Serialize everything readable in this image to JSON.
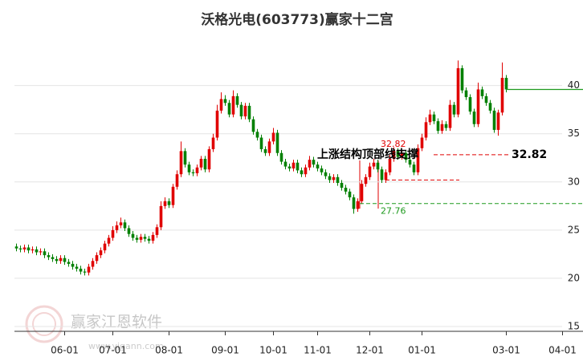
{
  "chart_data": {
    "type": "candlestick",
    "title": "沃格光电(603773)赢家十二宫",
    "watermark": "赢家江恩软件",
    "watermark_url": "www.yjgann.com",
    "annotation": "上涨结构顶部线支撑",
    "up_color": "#e00000",
    "down_color": "#008000",
    "ylim": [
      14.5,
      44.3
    ],
    "yticks": [
      15,
      20,
      25,
      30,
      35,
      40
    ],
    "grid": true,
    "levels": [
      {
        "value": 32.82,
        "color": "#e00000",
        "style": "dashed"
      },
      {
        "value": 27.76,
        "color": "#1e9a1e",
        "style": "dashed"
      },
      {
        "value": 30.2,
        "color": "#e00000",
        "style": "dashed"
      },
      {
        "value": 39.6,
        "color": "#1e9a1e",
        "style": "solid"
      }
    ],
    "categories": [
      null,
      null,
      null,
      null,
      null,
      null,
      null,
      null,
      null,
      null,
      null,
      null,
      "06-01",
      null,
      null,
      null,
      null,
      null,
      null,
      null,
      null,
      null,
      null,
      null,
      "07-01",
      null,
      null,
      null,
      null,
      null,
      null,
      null,
      null,
      null,
      null,
      null,
      null,
      null,
      "08-01",
      null,
      null,
      null,
      null,
      null,
      null,
      null,
      null,
      null,
      null,
      null,
      null,
      null,
      "09-01",
      null,
      null,
      null,
      null,
      null,
      null,
      null,
      null,
      null,
      null,
      null,
      "10-01",
      null,
      null,
      null,
      null,
      null,
      null,
      null,
      null,
      null,
      null,
      "11-01",
      null,
      null,
      null,
      null,
      null,
      null,
      null,
      null,
      null,
      null,
      null,
      null,
      "12-01",
      null,
      null,
      null,
      null,
      null,
      null,
      null,
      null,
      null,
      null,
      null,
      null,
      "01-01",
      null,
      null,
      null,
      null,
      null,
      null,
      null,
      null,
      null,
      null,
      null,
      null,
      null,
      null,
      null,
      null,
      null,
      null,
      null,
      null,
      "03-01",
      null,
      null,
      null,
      null,
      null,
      null,
      null,
      null,
      null,
      null,
      null,
      null,
      null,
      "04-01",
      null,
      null,
      null
    ],
    "open": [
      23.3,
      23.1,
      23.0,
      23.2,
      22.9,
      23.0,
      22.7,
      22.8,
      22.4,
      22.2,
      22.0,
      21.8,
      22.1,
      21.7,
      21.5,
      21.2,
      21.0,
      20.7,
      20.6,
      21.2,
      21.8,
      22.4,
      22.9,
      23.6,
      24.2,
      25.0,
      25.5,
      25.8,
      25.2,
      24.6,
      24.2,
      24.0,
      24.3,
      24.1,
      23.9,
      24.5,
      25.3,
      27.5,
      28.0,
      27.6,
      29.5,
      30.8,
      33.2,
      31.8,
      31.0,
      30.9,
      31.5,
      32.4,
      31.3,
      33.4,
      34.6,
      37.4,
      38.6,
      38.2,
      37.0,
      38.9,
      38.0,
      36.8,
      37.9,
      36.5,
      35.2,
      34.6,
      33.4,
      33.0,
      34.2,
      35.1,
      33.0,
      32.1,
      31.6,
      31.4,
      32.0,
      31.2,
      30.8,
      31.5,
      32.3,
      31.8,
      31.4,
      31.0,
      30.6,
      30.2,
      30.5,
      29.9,
      29.4,
      29.0,
      28.4,
      27.2,
      28.0,
      29.8,
      30.5,
      31.6,
      32.0,
      31.3,
      30.2,
      31.0,
      32.4,
      33.2,
      32.6,
      33.0,
      32.3,
      31.8,
      31.0,
      33.5,
      34.6,
      36.2,
      37.0,
      36.3,
      35.3,
      36.0,
      35.6,
      38.0,
      37.0,
      41.8,
      39.5,
      38.8,
      37.3,
      36.0,
      39.6,
      38.9,
      38.2,
      37.4,
      35.4,
      37.2,
      40.8,
      null,
      null,
      null,
      null,
      null,
      null,
      null,
      null,
      null,
      null,
      null,
      null,
      null,
      null,
      null,
      null,
      null
    ],
    "high": [
      23.6,
      23.4,
      23.5,
      23.5,
      23.3,
      23.3,
      23.1,
      23.1,
      22.7,
      22.5,
      22.3,
      22.4,
      22.4,
      22.0,
      21.8,
      21.5,
      21.3,
      21.0,
      21.5,
      22.1,
      22.7,
      23.2,
      23.9,
      24.5,
      25.4,
      25.9,
      26.3,
      26.1,
      25.5,
      24.9,
      24.5,
      24.6,
      24.6,
      24.4,
      24.8,
      25.6,
      28.0,
      28.4,
      28.3,
      29.8,
      31.2,
      34.2,
      33.5,
      32.1,
      31.3,
      31.8,
      32.7,
      32.7,
      33.7,
      35.0,
      38.0,
      39.3,
      39.0,
      38.5,
      39.5,
      39.2,
      38.3,
      38.2,
      38.2,
      36.8,
      35.5,
      34.9,
      33.7,
      34.5,
      35.6,
      35.4,
      33.3,
      32.4,
      31.9,
      32.3,
      32.3,
      31.5,
      31.8,
      32.7,
      32.6,
      32.1,
      31.7,
      31.3,
      30.9,
      30.8,
      30.8,
      30.2,
      29.7,
      29.3,
      28.7,
      28.3,
      30.2,
      30.8,
      32.0,
      32.4,
      32.3,
      31.6,
      31.3,
      32.8,
      33.6,
      33.5,
      33.3,
      33.3,
      32.6,
      32.1,
      33.9,
      35.0,
      36.7,
      37.5,
      37.3,
      36.6,
      36.4,
      36.3,
      38.5,
      38.3,
      42.6,
      42.1,
      39.8,
      39.1,
      37.6,
      40.3,
      39.9,
      39.2,
      38.5,
      37.7,
      37.5,
      42.4,
      41.1,
      null,
      null,
      null,
      null,
      null,
      null,
      null,
      null,
      null,
      null,
      null,
      null,
      null,
      null,
      null,
      null,
      null
    ],
    "low": [
      22.8,
      22.7,
      22.7,
      22.6,
      22.6,
      22.4,
      22.4,
      22.1,
      21.9,
      21.7,
      21.5,
      21.5,
      21.4,
      21.2,
      20.9,
      20.7,
      20.4,
      20.3,
      20.3,
      20.9,
      21.5,
      22.1,
      22.6,
      23.3,
      23.9,
      24.7,
      25.2,
      24.9,
      24.3,
      23.9,
      23.7,
      23.7,
      23.8,
      23.6,
      23.6,
      24.2,
      25.0,
      27.2,
      27.3,
      27.3,
      29.2,
      30.5,
      31.5,
      30.7,
      30.6,
      30.6,
      31.2,
      31.0,
      31.0,
      33.1,
      34.3,
      37.1,
      37.9,
      36.7,
      36.7,
      37.7,
      36.5,
      36.5,
      36.2,
      34.9,
      34.3,
      33.1,
      32.7,
      32.7,
      33.9,
      32.7,
      31.8,
      31.3,
      31.1,
      31.1,
      30.9,
      30.5,
      30.5,
      31.2,
      31.5,
      31.1,
      30.7,
      30.3,
      29.9,
      29.9,
      29.6,
      29.1,
      28.7,
      28.1,
      26.7,
      26.9,
      27.7,
      29.5,
      30.2,
      31.3,
      31.0,
      29.9,
      29.9,
      30.7,
      32.1,
      32.3,
      32.3,
      32.0,
      31.5,
      30.7,
      30.7,
      33.2,
      34.3,
      35.9,
      36.0,
      35.0,
      35.0,
      35.3,
      35.3,
      36.7,
      36.7,
      39.2,
      38.5,
      37.0,
      35.7,
      35.7,
      38.6,
      37.9,
      37.1,
      35.1,
      34.8,
      36.9,
      39.3,
      null,
      null,
      null,
      null,
      null,
      null,
      null,
      null,
      null,
      null,
      null,
      null,
      null,
      null,
      null,
      null,
      null
    ],
    "close": [
      23.1,
      23.0,
      23.2,
      22.9,
      23.0,
      22.7,
      22.8,
      22.4,
      22.2,
      22.0,
      21.8,
      22.1,
      21.7,
      21.5,
      21.2,
      21.0,
      20.7,
      20.6,
      21.2,
      21.8,
      22.4,
      22.9,
      23.6,
      24.2,
      25.0,
      25.5,
      25.8,
      25.2,
      24.6,
      24.2,
      24.0,
      24.3,
      24.1,
      23.9,
      24.5,
      25.3,
      27.5,
      28.0,
      27.6,
      29.5,
      30.8,
      33.2,
      31.8,
      31.0,
      30.9,
      31.5,
      32.4,
      31.3,
      33.4,
      34.6,
      37.4,
      38.6,
      38.2,
      37.0,
      38.9,
      38.0,
      36.8,
      37.9,
      36.5,
      35.2,
      34.6,
      33.4,
      33.0,
      34.2,
      35.1,
      33.0,
      32.1,
      31.6,
      31.4,
      32.0,
      31.2,
      30.8,
      31.5,
      32.3,
      31.8,
      31.4,
      31.0,
      30.6,
      30.2,
      30.5,
      29.9,
      29.4,
      29.0,
      28.4,
      27.2,
      28.0,
      29.8,
      30.5,
      31.6,
      32.0,
      31.3,
      30.2,
      31.0,
      32.4,
      33.2,
      32.6,
      33.0,
      32.3,
      31.8,
      31.0,
      33.5,
      34.6,
      36.2,
      37.0,
      36.3,
      35.3,
      36.0,
      35.6,
      38.0,
      37.0,
      41.8,
      39.5,
      38.8,
      37.3,
      36.0,
      39.6,
      38.9,
      38.2,
      37.4,
      35.4,
      37.2,
      40.8,
      39.6,
      null,
      null,
      null,
      null,
      null,
      null,
      null,
      null,
      null,
      null,
      null,
      null,
      null,
      null,
      null,
      null,
      null
    ]
  }
}
